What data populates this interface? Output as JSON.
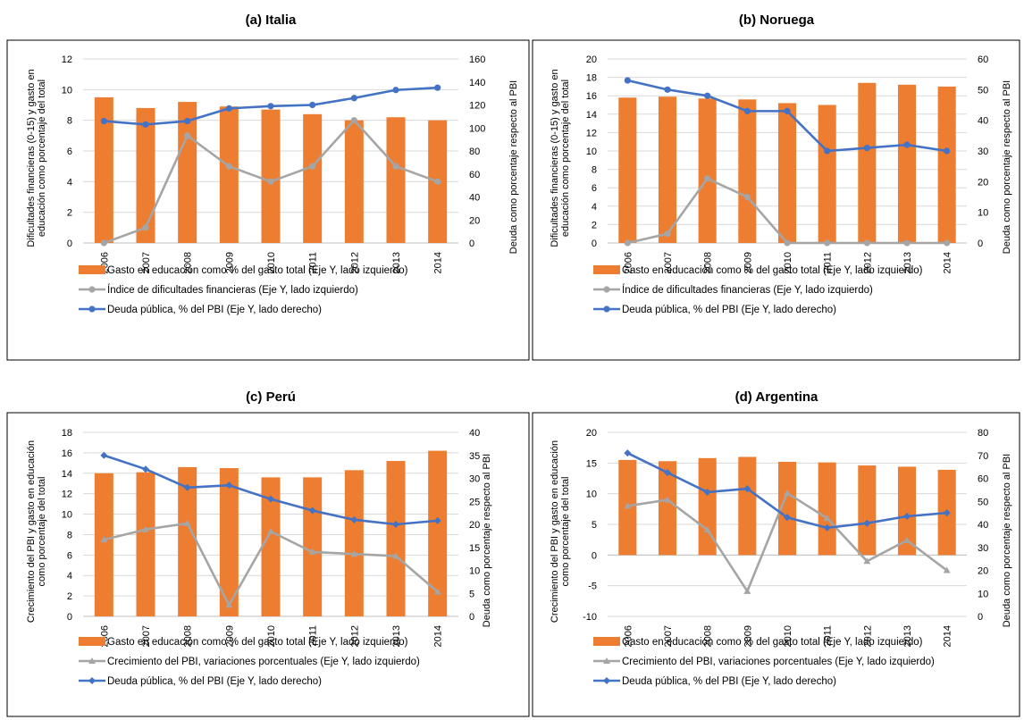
{
  "chart_data": [
    {
      "type": "bar",
      "title": "(a) Italia",
      "categories": [
        "2006",
        "2007",
        "2008",
        "2009",
        "2010",
        "2011",
        "2012",
        "2013",
        "2014"
      ],
      "ylabel_left": "Dificultades financieras (0-15) y gasto en educación como porcentaje del total",
      "ylabel_right": "Deuda como porcentaje respecto al PBI",
      "ylim_left": [
        0,
        12
      ],
      "yticks_left": [
        0,
        2,
        4,
        6,
        8,
        10,
        12
      ],
      "ylim_right": [
        0,
        160
      ],
      "yticks_right": [
        0,
        20,
        40,
        60,
        80,
        100,
        120,
        140,
        160
      ],
      "series": [
        {
          "name": "Gasto en educación como % del gasto total (Eje Y, lado izquierdo)",
          "kind": "bar",
          "axis": "left",
          "color": "#ED7D31",
          "values": [
            9.5,
            8.8,
            9.2,
            8.9,
            8.7,
            8.4,
            8.0,
            8.2,
            8.0
          ]
        },
        {
          "name": "Índice de dificultades financieras (Eje Y, lado izquierdo)",
          "kind": "line",
          "marker": "circle",
          "axis": "left",
          "color": "#A5A5A5",
          "values": [
            0,
            1,
            7,
            5,
            4,
            5,
            8,
            5,
            4
          ]
        },
        {
          "name": "Deuda pública, % del PBI (Eje Y, lado derecho)",
          "kind": "line",
          "marker": "circle",
          "axis": "right",
          "color": "#4472C4",
          "values": [
            106,
            103,
            106,
            117,
            119,
            120,
            126,
            133,
            135
          ]
        }
      ]
    },
    {
      "type": "bar",
      "title": "(b) Noruega",
      "categories": [
        "2006",
        "2007",
        "2008",
        "2009",
        "2010",
        "2011",
        "2012",
        "2013",
        "2014"
      ],
      "ylabel_left": "Dificultades financieras (0-15) y gasto en educación como porcentaje del total",
      "ylabel_right": "Deuda como porcentaje respecto al PBI",
      "ylim_left": [
        0,
        20
      ],
      "yticks_left": [
        0,
        2,
        4,
        6,
        8,
        10,
        12,
        14,
        16,
        18,
        20
      ],
      "ylim_right": [
        0,
        60
      ],
      "yticks_right": [
        0,
        10,
        20,
        30,
        40,
        50,
        60
      ],
      "series": [
        {
          "name": "Gasto en educación como % del gasto total (Eje Y, lado izquierdo)",
          "kind": "bar",
          "axis": "left",
          "color": "#ED7D31",
          "values": [
            15.8,
            15.9,
            15.7,
            15.6,
            15.2,
            15.0,
            17.4,
            17.2,
            17.0
          ]
        },
        {
          "name": "Índice de dificultades financieras (Eje Y, lado izquierdo)",
          "kind": "line",
          "marker": "circle",
          "axis": "left",
          "color": "#A5A5A5",
          "values": [
            0,
            1,
            7,
            5,
            0,
            0,
            0,
            0,
            0
          ]
        },
        {
          "name": "Deuda pública, % del PBI (Eje Y, lado derecho)",
          "kind": "line",
          "marker": "circle",
          "axis": "right",
          "color": "#4472C4",
          "values": [
            53,
            50,
            48,
            43,
            43,
            30,
            31,
            32,
            30
          ]
        }
      ]
    },
    {
      "type": "bar",
      "title": "(c) Perú",
      "categories": [
        "2006",
        "2007",
        "2008",
        "2009",
        "2010",
        "2011",
        "2012",
        "2013",
        "2014"
      ],
      "ylabel_left": "Crecimiento del PBI y gasto en educación como porcentaje del total",
      "ylabel_right": "Deuda como porcentaje respecto al PBI",
      "ylim_left": [
        0,
        18
      ],
      "yticks_left": [
        0,
        2,
        4,
        6,
        8,
        10,
        12,
        14,
        16,
        18
      ],
      "ylim_right": [
        0,
        40
      ],
      "yticks_right": [
        0,
        5,
        10,
        15,
        20,
        25,
        30,
        35,
        40
      ],
      "series": [
        {
          "name": "Gasto en educación como % del gasto total (Eje Y, lado izquierdo)",
          "kind": "bar",
          "axis": "left",
          "color": "#ED7D31",
          "values": [
            14.0,
            14.1,
            14.6,
            14.5,
            13.6,
            13.6,
            14.3,
            15.2,
            16.2
          ]
        },
        {
          "name": "Crecimiento del PBI, variaciones porcentuales (Eje Y, lado izquierdo)",
          "kind": "line",
          "marker": "triangle",
          "axis": "left",
          "color": "#A5A5A5",
          "values": [
            7.5,
            8.5,
            9.1,
            1.1,
            8.3,
            6.3,
            6.1,
            5.9,
            2.4
          ]
        },
        {
          "name": "Deuda pública, % del PBI (Eje Y, lado derecho)",
          "kind": "line",
          "marker": "diamond",
          "axis": "right",
          "color": "#4472C4",
          "values": [
            35,
            32,
            28,
            28.5,
            25.5,
            23,
            21,
            20,
            20.8
          ]
        }
      ]
    },
    {
      "type": "bar",
      "title": "(d) Argentina",
      "categories": [
        "2006",
        "2007",
        "2008",
        "2009",
        "2010",
        "2011",
        "2012",
        "2013",
        "2014"
      ],
      "ylabel_left": "Crecimiento del PBI y gasto en educación como porcentaje del total",
      "ylabel_right": "Deuda como porcentaje respecto al PBI",
      "ylim_left": [
        -10,
        20
      ],
      "yticks_left": [
        -10,
        -5,
        0,
        5,
        10,
        15,
        20
      ],
      "ylim_right": [
        0,
        80
      ],
      "yticks_right": [
        0,
        10,
        20,
        30,
        40,
        50,
        60,
        70,
        80
      ],
      "series": [
        {
          "name": "Gasto en educación como % del gasto total (Eje Y, lado izquierdo)",
          "kind": "bar",
          "axis": "left",
          "color": "#ED7D31",
          "values": [
            15.5,
            15.3,
            15.8,
            16.0,
            15.2,
            15.1,
            14.6,
            14.4,
            13.9
          ]
        },
        {
          "name": "Crecimiento del PBI, variaciones porcentuales (Eje Y, lado izquierdo)",
          "kind": "line",
          "marker": "triangle",
          "axis": "left",
          "color": "#A5A5A5",
          "values": [
            8.0,
            9.0,
            4.1,
            -5.9,
            10.1,
            6.0,
            -1.0,
            2.4,
            -2.5
          ]
        },
        {
          "name": "Deuda pública, % del PBI (Eje Y, lado derecho)",
          "kind": "line",
          "marker": "diamond",
          "axis": "right",
          "color": "#4472C4",
          "values": [
            71,
            62.5,
            54,
            55.5,
            43,
            38.5,
            40.5,
            43.5,
            45
          ]
        }
      ]
    }
  ]
}
